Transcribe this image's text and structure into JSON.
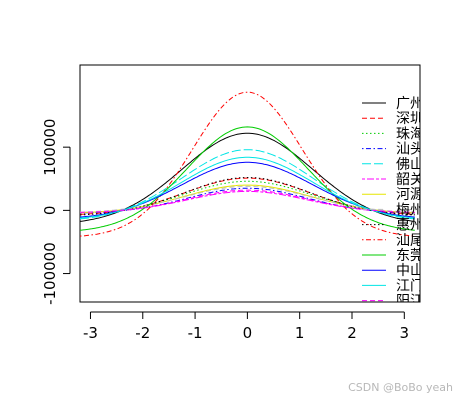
{
  "watermark": "CSDN @BoBo yeah",
  "chart_data": {
    "type": "line",
    "title": "",
    "xlabel": "",
    "ylabel": "",
    "xlim": [
      -3.2,
      3.3
    ],
    "ylim": [
      -145000,
      230000
    ],
    "x_ticks": [
      -3,
      -2,
      -1,
      0,
      1,
      2,
      3
    ],
    "x_tick_labels": [
      "-3",
      "-2",
      "-1",
      "0",
      "1",
      "2",
      "3"
    ],
    "y_ticks": [
      -100000,
      0,
      100000
    ],
    "y_tick_labels": [
      "-100000",
      "0",
      "100000"
    ],
    "grid": false,
    "legend_position": "top-right",
    "series": [
      {
        "name": "广州",
        "color": "#000000",
        "dash": "solid",
        "peak": 122000,
        "width": 1.25,
        "offset": -23000
      },
      {
        "name": "深圳",
        "color": "#ff0000",
        "dash": "dashed",
        "peak": 51000,
        "width": 1.2,
        "offset": -8000
      },
      {
        "name": "珠海",
        "color": "#00cc00",
        "dash": "dotted",
        "peak": 46000,
        "width": 1.2,
        "offset": -6000
      },
      {
        "name": "汕头",
        "color": "#0000ff",
        "dash": "dotdash",
        "peak": 35000,
        "width": 1.15,
        "offset": -5000
      },
      {
        "name": "佛山",
        "color": "#00e5e5",
        "dash": "longdash",
        "peak": 96000,
        "width": 1.25,
        "offset": -18000
      },
      {
        "name": "韶关",
        "color": "#ff00ff",
        "dash": "twodash",
        "peak": 30000,
        "width": 1.15,
        "offset": -4000
      },
      {
        "name": "河源",
        "color": "#e5e500",
        "dash": "solid",
        "peak": 40000,
        "width": 1.2,
        "offset": -5000
      },
      {
        "name": "梅州",
        "color": "#bebebe",
        "dash": "dashed",
        "peak": 38000,
        "width": 1.2,
        "offset": -4000
      },
      {
        "name": "惠州",
        "color": "#000000",
        "dash": "dotted",
        "peak": 52000,
        "width": 1.2,
        "offset": -9000
      },
      {
        "name": "汕尾",
        "color": "#ff0000",
        "dash": "dotdash",
        "peak": 187000,
        "width": 1.05,
        "offset": -43000
      },
      {
        "name": "东莞",
        "color": "#00cc00",
        "dash": "solid",
        "peak": 132000,
        "width": 1.15,
        "offset": -35000
      },
      {
        "name": "中山",
        "color": "#0000ff",
        "dash": "solid",
        "peak": 76000,
        "width": 1.25,
        "offset": -14000
      },
      {
        "name": "江门",
        "color": "#00e5e5",
        "dash": "solid",
        "peak": 84000,
        "width": 1.25,
        "offset": -16000
      },
      {
        "name": "阳江",
        "color": "#ff00ff",
        "dash": "dashed",
        "peak": 32000,
        "width": 1.15,
        "offset": -4000
      }
    ]
  }
}
